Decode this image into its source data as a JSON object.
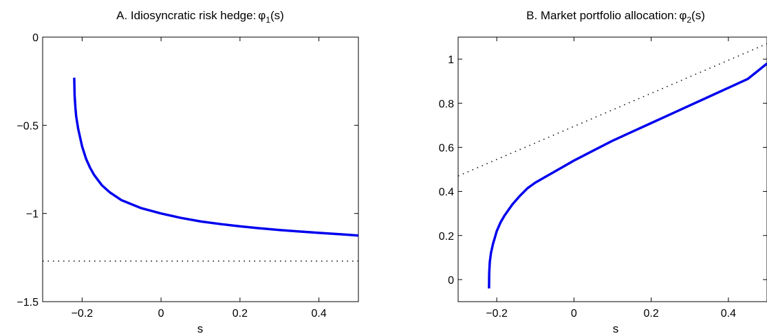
{
  "chart_data": [
    {
      "type": "line",
      "title_main": "A. Idiosyncratic risk hedge:",
      "title_symbol": "φ",
      "title_sub": "1",
      "title_tail": "(s)",
      "xlabel": "s",
      "ylabel": "",
      "xlim": [
        -0.3,
        0.5
      ],
      "ylim": [
        -1.5,
        0
      ],
      "xticks": [
        -0.2,
        0,
        0.2,
        0.4
      ],
      "xtick_labels": [
        "−0.2",
        "0",
        "0.2",
        "0.4"
      ],
      "yticks": [
        -1.5,
        -1,
        -0.5,
        0
      ],
      "ytick_labels": [
        "−1.5",
        "−1",
        "−0.5",
        "0"
      ],
      "grid": false,
      "series": [
        {
          "style": "solid",
          "color": "#0000ee",
          "x": [
            -0.22,
            -0.219,
            -0.217,
            -0.215,
            -0.21,
            -0.205,
            -0.2,
            -0.19,
            -0.18,
            -0.17,
            -0.16,
            -0.15,
            -0.13,
            -0.1,
            -0.05,
            0.0,
            0.05,
            0.1,
            0.15,
            0.2,
            0.25,
            0.3,
            0.35,
            0.4,
            0.45,
            0.5
          ],
          "y": [
            -0.23,
            -0.33,
            -0.4,
            -0.45,
            -0.52,
            -0.57,
            -0.62,
            -0.69,
            -0.74,
            -0.78,
            -0.81,
            -0.84,
            -0.88,
            -0.925,
            -0.97,
            -1.0,
            -1.025,
            -1.045,
            -1.06,
            -1.073,
            -1.084,
            -1.094,
            -1.102,
            -1.11,
            -1.117,
            -1.125
          ]
        },
        {
          "style": "dotted",
          "color": "#000000",
          "x": [
            -0.3,
            0.5
          ],
          "y": [
            -1.27,
            -1.27
          ]
        }
      ]
    },
    {
      "type": "line",
      "title_main": "B. Market portfolio allocation:",
      "title_symbol": "φ",
      "title_sub": "2",
      "title_tail": "(s)",
      "xlabel": "s",
      "ylabel": "",
      "xlim": [
        -0.3,
        0.5
      ],
      "ylim": [
        -0.1,
        1.1
      ],
      "xticks": [
        -0.2,
        0,
        0.2,
        0.4
      ],
      "xtick_labels": [
        "−0.2",
        "0",
        "0.2",
        "0.4"
      ],
      "yticks": [
        0,
        0.2,
        0.4,
        0.6,
        0.8,
        1
      ],
      "ytick_labels": [
        "0",
        "0.2",
        "0.4",
        "0.6",
        "0.8",
        "1"
      ],
      "grid": false,
      "series": [
        {
          "style": "solid",
          "color": "#0000ee",
          "x": [
            -0.22,
            -0.2195,
            -0.218,
            -0.215,
            -0.21,
            -0.2,
            -0.19,
            -0.18,
            -0.16,
            -0.14,
            -0.12,
            -0.1,
            -0.05,
            0.0,
            0.05,
            0.1,
            0.15,
            0.2,
            0.25,
            0.3,
            0.35,
            0.4,
            0.45,
            0.5
          ],
          "y": [
            -0.04,
            0.03,
            0.08,
            0.12,
            0.16,
            0.22,
            0.26,
            0.29,
            0.34,
            0.38,
            0.415,
            0.44,
            0.49,
            0.54,
            0.585,
            0.63,
            0.67,
            0.71,
            0.75,
            0.79,
            0.83,
            0.87,
            0.91,
            0.98
          ]
        },
        {
          "style": "dotted",
          "color": "#000000",
          "x": [
            -0.3,
            0.5
          ],
          "y": [
            0.47,
            1.07
          ]
        }
      ]
    }
  ]
}
